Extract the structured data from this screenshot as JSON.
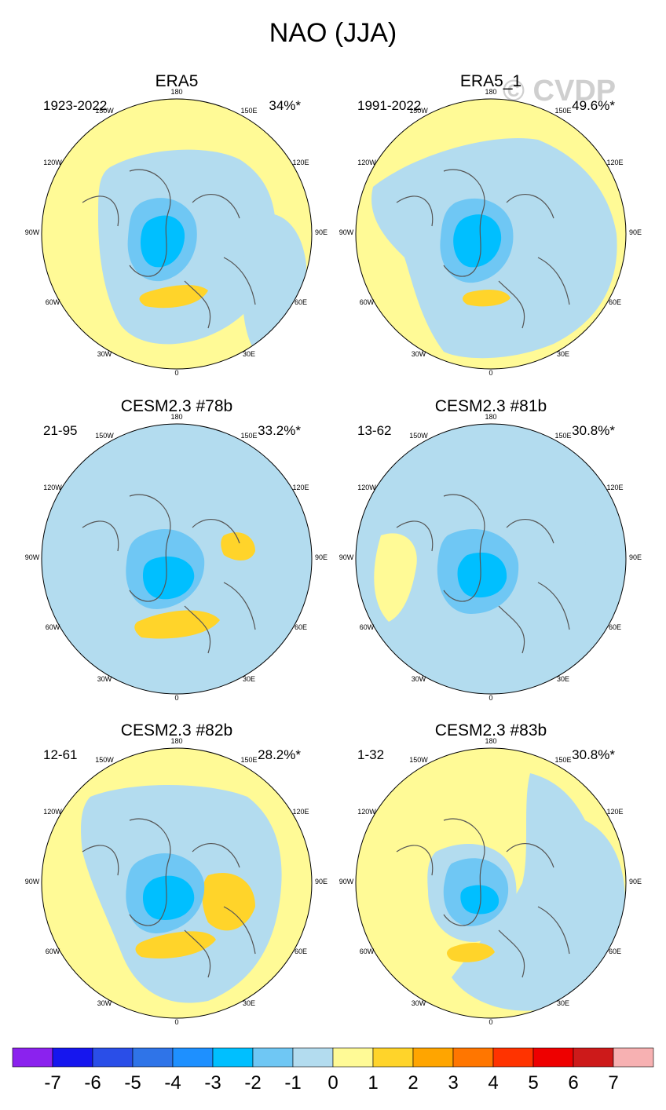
{
  "figure": {
    "title": "NAO (JJA)",
    "watermark": "© CVDP"
  },
  "colors": {
    "circle_stroke": "#000000",
    "coast": "#555555"
  },
  "chart_data": {
    "type": "heatmap",
    "projection": "north-polar-stereographic",
    "variable": "NAO (JJA)",
    "longitude_labels": [
      "180",
      "150E",
      "120E",
      "90E",
      "60E",
      "30E",
      "0",
      "30W",
      "60W",
      "90W",
      "120W",
      "150W"
    ],
    "panels": [
      {
        "title": "ERA5",
        "period": "1923-2022",
        "variance": "34%*"
      },
      {
        "title": "ERA5_1",
        "period": "1991-2022",
        "variance": "49.6%*"
      },
      {
        "title": "CESM2.3 #78b",
        "period": "21-95",
        "variance": "33.2%*"
      },
      {
        "title": "CESM2.3 #81b",
        "period": "13-62",
        "variance": "30.8%*"
      },
      {
        "title": "CESM2.3 #82b",
        "period": "12-61",
        "variance": "28.2%*"
      },
      {
        "title": "CESM2.3 #83b",
        "period": "1-32",
        "variance": "30.8%*"
      }
    ],
    "colorbar": {
      "tick_labels": [
        "-7",
        "-6",
        "-5",
        "-4",
        "-3",
        "-2",
        "-1",
        "0",
        "1",
        "2",
        "3",
        "4",
        "5",
        "6",
        "7"
      ],
      "colors": [
        "#8b22ee",
        "#1616ee",
        "#2a4ee8",
        "#2f74e8",
        "#1e90ff",
        "#00bfff",
        "#6fc7f4",
        "#b3dcef",
        "#fffa96",
        "#ffd42a",
        "#ffa500",
        "#ff7600",
        "#ff3300",
        "#ee0000",
        "#cd1a1a",
        "#f7b1b2"
      ]
    }
  }
}
